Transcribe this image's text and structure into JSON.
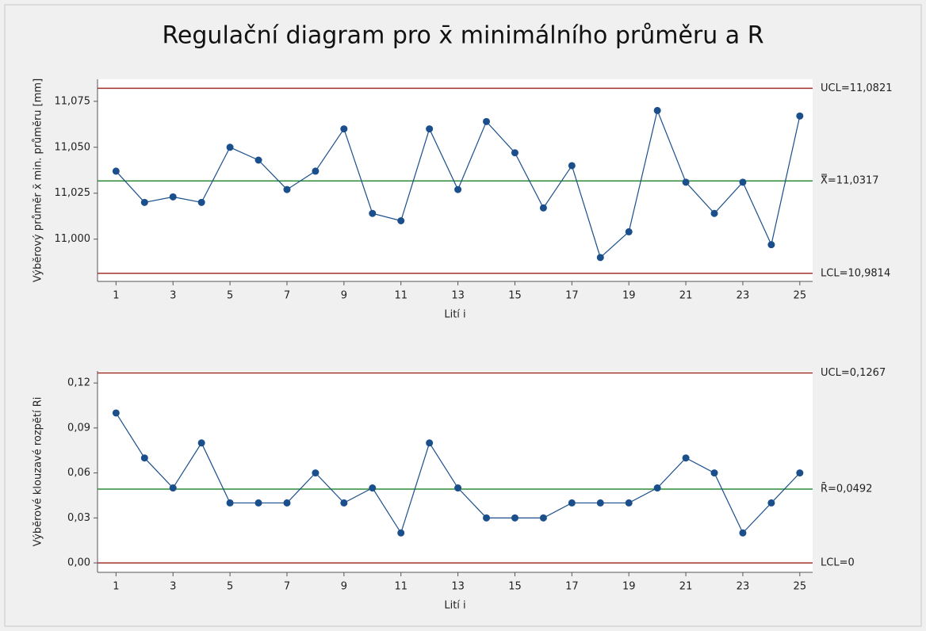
{
  "title": "Regulační diagram pro x̄ minimálního průměru a R",
  "chart_data": [
    {
      "type": "line",
      "ylabel": "Výběrový průměr x̄ min. průměru [mm]",
      "xlabel": "Lití i",
      "x": [
        1,
        2,
        3,
        4,
        5,
        6,
        7,
        8,
        9,
        10,
        11,
        12,
        13,
        14,
        15,
        16,
        17,
        18,
        19,
        20,
        21,
        22,
        23,
        24,
        25
      ],
      "values": [
        11.037,
        11.02,
        11.023,
        11.02,
        11.05,
        11.043,
        11.027,
        11.037,
        11.06,
        11.014,
        11.01,
        11.06,
        11.027,
        11.064,
        11.047,
        11.017,
        11.04,
        10.99,
        11.004,
        11.07,
        11.031,
        11.014,
        11.031,
        10.997,
        11.067
      ],
      "color": "#1a4f8b",
      "xlim": [
        0.35,
        25.45
      ],
      "ylim": [
        10.977,
        11.087
      ],
      "xticks": [
        1,
        3,
        5,
        7,
        9,
        11,
        13,
        15,
        17,
        19,
        21,
        23,
        25
      ],
      "yticks": [
        {
          "value": 11,
          "label": "11,000"
        },
        {
          "value": 11.025,
          "label": "11,025"
        },
        {
          "value": 11.05,
          "label": "11,050"
        },
        {
          "value": 11.075,
          "label": "11,075"
        }
      ],
      "limits": [
        {
          "value": 11.0821,
          "label": "UCL=11,0821",
          "color": "#a0322d"
        },
        {
          "value": 11.0317,
          "label": "X̿=11,0317",
          "color": "#2e8b3a"
        },
        {
          "value": 10.9814,
          "label": "LCL=10,9814",
          "color": "#a0322d"
        }
      ]
    },
    {
      "type": "line",
      "ylabel": "Výběrové klouzavé rozpětí Ri",
      "xlabel": "Lití i",
      "x": [
        1,
        2,
        3,
        4,
        5,
        6,
        7,
        8,
        9,
        10,
        11,
        12,
        13,
        14,
        15,
        16,
        17,
        18,
        19,
        20,
        21,
        22,
        23,
        24,
        25
      ],
      "values": [
        0.1,
        0.07,
        0.05,
        0.08,
        0.04,
        0.04,
        0.04,
        0.06,
        0.04,
        0.05,
        0.02,
        0.08,
        0.05,
        0.03,
        0.03,
        0.03,
        0.04,
        0.04,
        0.04,
        0.05,
        0.07,
        0.06,
        0.02,
        0.04,
        0.06
      ],
      "color": "#1a4f8b",
      "xlim": [
        0.35,
        25.45
      ],
      "ylim": [
        -0.0063,
        0.128
      ],
      "xticks": [
        1,
        3,
        5,
        7,
        9,
        11,
        13,
        15,
        17,
        19,
        21,
        23,
        25
      ],
      "yticks": [
        {
          "value": 0,
          "label": "0,00"
        },
        {
          "value": 0.03,
          "label": "0,03"
        },
        {
          "value": 0.06,
          "label": "0,06"
        },
        {
          "value": 0.09,
          "label": "0,09"
        },
        {
          "value": 0.12,
          "label": "0,12"
        }
      ],
      "limits": [
        {
          "value": 0.1267,
          "label": "UCL=0,1267",
          "color": "#a0322d"
        },
        {
          "value": 0.0492,
          "label": "R̄=0,0492",
          "color": "#2e8b3a"
        },
        {
          "value": 0,
          "label": "LCL=0",
          "color": "#a0322d"
        }
      ]
    }
  ]
}
